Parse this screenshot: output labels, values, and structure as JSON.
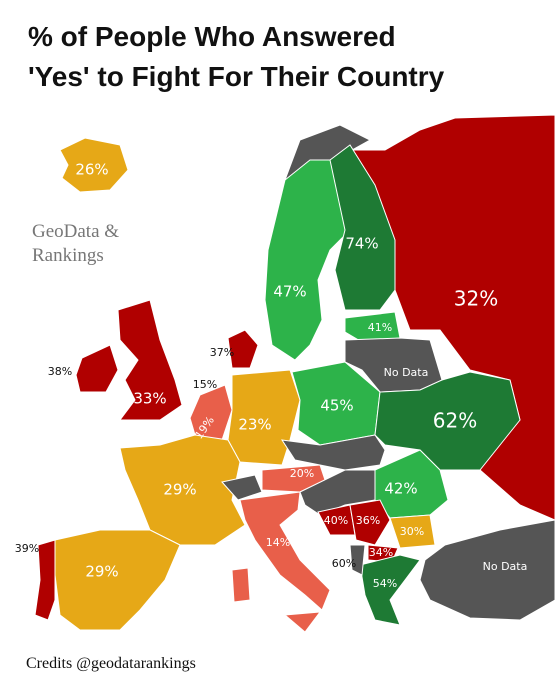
{
  "header": {
    "title_line1": "% of People Who Answered",
    "title_line2": "'Yes' to Fight For Their Country"
  },
  "watermark": {
    "line1": "GeoData &",
    "line2": "Rankings"
  },
  "regions": [
    {
      "label": "26%"
    },
    {
      "label": "47%"
    },
    {
      "label": "74%"
    },
    {
      "label": "32%"
    },
    {
      "label": "41%"
    },
    {
      "label": "No Data"
    },
    {
      "label": "38%"
    },
    {
      "label": "33%"
    },
    {
      "label": "37%"
    },
    {
      "label": "15%"
    },
    {
      "label": "19%"
    },
    {
      "label": "23%"
    },
    {
      "label": "45%"
    },
    {
      "label": "62%"
    },
    {
      "label": "29%"
    },
    {
      "label": "20%"
    },
    {
      "label": "42%"
    },
    {
      "label": "40%"
    },
    {
      "label": "36%"
    },
    {
      "label": "30%"
    },
    {
      "label": "34%"
    },
    {
      "label": "14%"
    },
    {
      "label": "29%"
    },
    {
      "label": "39%"
    },
    {
      "label": "54%"
    },
    {
      "label": "60%"
    },
    {
      "label": "No Data"
    }
  ],
  "footer": {
    "credits": "Credits @geodatarankings"
  }
}
